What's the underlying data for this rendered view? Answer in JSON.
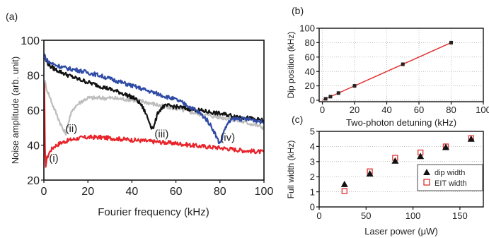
{
  "panel_labels": {
    "a": "(a)",
    "b": "(b)",
    "c": "(c)"
  },
  "chart_data": [
    {
      "id": "a",
      "type": "line",
      "xlabel": "Fourier frequency (kHz)",
      "ylabel": "Noise amplitude (arb. unit)",
      "xlim": [
        0,
        100
      ],
      "ylim": [
        20,
        100
      ],
      "xticks": [
        0,
        20,
        40,
        60,
        80,
        100
      ],
      "yticks": [
        20,
        40,
        60,
        80,
        100
      ],
      "annotations": [
        {
          "text": "(i)",
          "x": 4.5,
          "y": 30.5
        },
        {
          "text": "(ii)",
          "x": 12.5,
          "y": 47.5
        },
        {
          "text": "(iii)",
          "x": 53.5,
          "y": 44.5
        },
        {
          "text": "(iv)",
          "x": 83.5,
          "y": 42.5
        }
      ],
      "series": [
        {
          "color": "#e8242a",
          "x": [
            0.2,
            0.6,
            1.5,
            3,
            5,
            8,
            12,
            16,
            20,
            25,
            30,
            40,
            50,
            60,
            70,
            80,
            90,
            100
          ],
          "y": [
            75,
            27,
            33,
            37,
            39.5,
            41.5,
            43,
            44,
            44.5,
            44.5,
            44,
            43,
            42,
            41,
            39.5,
            38.5,
            37,
            36
          ]
        },
        {
          "color": "#bdbdbd",
          "x": [
            0.3,
            1,
            2,
            4,
            6,
            8,
            9,
            10,
            11,
            12,
            14,
            17,
            20,
            25,
            30,
            35,
            40,
            45,
            50,
            55,
            60,
            65,
            70,
            75,
            80,
            85,
            90,
            95,
            100
          ],
          "y": [
            78,
            73,
            70,
            63,
            57,
            51,
            48,
            47,
            52,
            57,
            62,
            65,
            67,
            67,
            67,
            66.5,
            66,
            65,
            63.5,
            62,
            61,
            59.5,
            58,
            57,
            56,
            55,
            53.5,
            52,
            50
          ]
        },
        {
          "color": "#111111",
          "x": [
            0.3,
            1,
            3,
            5,
            10,
            15,
            20,
            25,
            30,
            35,
            40,
            42,
            44,
            46,
            48,
            49,
            50,
            51,
            52,
            54,
            56,
            60,
            65,
            70,
            75,
            80,
            85,
            90,
            95,
            100
          ],
          "y": [
            90,
            88,
            85,
            83.5,
            80.5,
            78,
            76,
            74,
            72,
            70,
            67.5,
            66,
            63.5,
            59,
            53,
            50,
            50.5,
            55,
            59,
            62,
            62.5,
            62,
            61,
            60,
            59,
            58,
            57,
            56,
            55,
            54
          ]
        },
        {
          "color": "#2f4ba5",
          "x": [
            0.3,
            1,
            3,
            5,
            10,
            15,
            20,
            25,
            30,
            35,
            40,
            45,
            50,
            55,
            60,
            65,
            70,
            72,
            74,
            76,
            78,
            79,
            80,
            81,
            82,
            84,
            86,
            90,
            95,
            100
          ],
          "y": [
            92,
            89,
            87,
            86,
            84,
            83,
            81.5,
            80,
            78,
            76,
            74,
            72,
            70,
            68,
            66,
            63,
            59,
            57,
            54.5,
            51,
            46,
            43,
            41,
            44,
            49,
            53,
            55,
            55,
            54.5,
            53
          ]
        }
      ]
    },
    {
      "id": "b",
      "type": "scatter",
      "xlabel": "Two-photon detuning (kHz)",
      "ylabel": "Dip position (kHz)",
      "xlim": [
        -2,
        100
      ],
      "ylim": [
        -2,
        100
      ],
      "xticks": [
        0,
        20,
        40,
        60,
        80,
        100
      ],
      "yticks": [
        0,
        20,
        40,
        60,
        80,
        100
      ],
      "points": {
        "x": [
          2,
          5,
          10,
          20,
          50,
          80
        ],
        "y": [
          2,
          5,
          10,
          20,
          50,
          80
        ],
        "color": "#222222"
      },
      "fit_line": {
        "x": [
          0,
          80
        ],
        "y": [
          0,
          80
        ],
        "color": "#e03030"
      }
    },
    {
      "id": "c",
      "type": "scatter",
      "xlabel": "Laser power (μW)",
      "ylabel": "Full width (kHz)",
      "xlim": [
        0,
        175
      ],
      "ylim": [
        0,
        5
      ],
      "xticks": [
        0,
        50,
        100,
        150
      ],
      "yticks": [
        0,
        1,
        2,
        3,
        4,
        5
      ],
      "legend_position": "bottom-right",
      "series": [
        {
          "name": "dip width",
          "marker": "triangle",
          "color": "#111111",
          "x": [
            27,
            54,
            81,
            108,
            135,
            162
          ],
          "y": [
            1.5,
            2.2,
            3.05,
            3.35,
            3.95,
            4.5
          ]
        },
        {
          "name": "EIT width",
          "marker": "square-open",
          "color": "#e03030",
          "x": [
            27,
            54,
            81,
            108,
            135,
            162
          ],
          "y": [
            1.05,
            2.35,
            3.25,
            3.6,
            4.0,
            4.55
          ]
        }
      ]
    }
  ]
}
